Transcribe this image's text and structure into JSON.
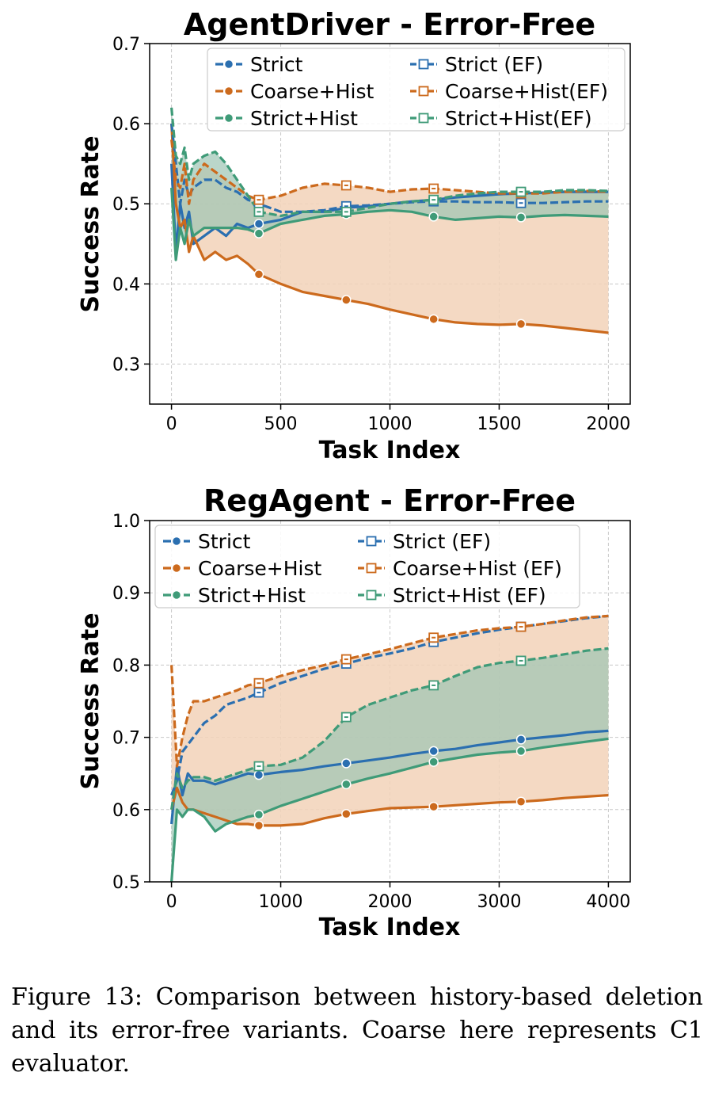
{
  "colors": {
    "strict": "#2b6fb0",
    "coarse": "#cc6a1d",
    "strict_hist": "#3f9b78",
    "grid": "#c8c8c8",
    "fill_coarse": "#f2d2b8",
    "fill_strict_hist": "#9cc4b3"
  },
  "chart_data": [
    {
      "type": "line",
      "title": "AgentDriver - Error-Free",
      "xlabel": "Task Index",
      "ylabel": "Success Rate",
      "xlim": [
        -100,
        2100
      ],
      "ylim": [
        0.25,
        0.7
      ],
      "xticks": [
        0,
        500,
        1000,
        1500,
        2000
      ],
      "xtick_labels": [
        "0",
        "500",
        "1000",
        "1500",
        "2000"
      ],
      "yticks": [
        0.3,
        0.4,
        0.5,
        0.6,
        0.7
      ],
      "ytick_labels": [
        "0.3",
        "0.4",
        "0.5",
        "0.6",
        "0.7"
      ],
      "grid": true,
      "legend_position": "top-right",
      "legend": [
        "Strict",
        "Coarse+Hist",
        "Strict+Hist",
        "Strict (EF)",
        "Coarse+Hist(EF)",
        "Strict+Hist(EF)"
      ],
      "series": [
        {
          "name": "Strict",
          "key": "strict",
          "style": "circle",
          "markers": [
            400,
            800,
            1200,
            1600
          ],
          "x": [
            0,
            20,
            40,
            60,
            80,
            100,
            150,
            200,
            250,
            300,
            350,
            400,
            500,
            600,
            700,
            800,
            900,
            1000,
            1100,
            1200,
            1300,
            1400,
            1500,
            1600,
            1700,
            1800,
            1900,
            2000
          ],
          "y": [
            0.55,
            0.44,
            0.5,
            0.47,
            0.49,
            0.45,
            0.46,
            0.47,
            0.46,
            0.475,
            0.47,
            0.475,
            0.48,
            0.49,
            0.49,
            0.495,
            0.497,
            0.5,
            0.503,
            0.505,
            0.508,
            0.51,
            0.512,
            0.513,
            0.514,
            0.515,
            0.515,
            0.515
          ]
        },
        {
          "name": "Coarse+Hist",
          "key": "coarse",
          "style": "circle",
          "markers": [
            400,
            800,
            1200,
            1600
          ],
          "x": [
            0,
            20,
            40,
            60,
            80,
            100,
            150,
            200,
            250,
            300,
            350,
            400,
            500,
            600,
            700,
            800,
            900,
            1000,
            1100,
            1200,
            1300,
            1400,
            1500,
            1600,
            1700,
            1800,
            1900,
            2000
          ],
          "y": [
            0.6,
            0.5,
            0.47,
            0.48,
            0.44,
            0.46,
            0.43,
            0.44,
            0.43,
            0.435,
            0.425,
            0.412,
            0.4,
            0.39,
            0.385,
            0.38,
            0.375,
            0.368,
            0.362,
            0.356,
            0.352,
            0.35,
            0.349,
            0.35,
            0.348,
            0.345,
            0.342,
            0.339
          ]
        },
        {
          "name": "Strict+Hist",
          "key": "strict_hist",
          "style": "circle",
          "markers": [
            400,
            800,
            1200,
            1600
          ],
          "x": [
            0,
            20,
            40,
            60,
            80,
            100,
            150,
            200,
            250,
            300,
            350,
            400,
            500,
            600,
            700,
            800,
            900,
            1000,
            1100,
            1200,
            1300,
            1400,
            1500,
            1600,
            1700,
            1800,
            1900,
            2000
          ],
          "y": [
            0.52,
            0.43,
            0.47,
            0.45,
            0.48,
            0.46,
            0.47,
            0.47,
            0.47,
            0.47,
            0.468,
            0.463,
            0.475,
            0.48,
            0.485,
            0.487,
            0.49,
            0.492,
            0.49,
            0.484,
            0.48,
            0.482,
            0.484,
            0.483,
            0.485,
            0.486,
            0.485,
            0.484
          ]
        },
        {
          "name": "Strict (EF)",
          "key": "strict",
          "style": "square",
          "markers": [
            400,
            800,
            1200,
            1600
          ],
          "x": [
            0,
            20,
            40,
            60,
            80,
            100,
            150,
            200,
            250,
            300,
            350,
            400,
            500,
            600,
            700,
            800,
            900,
            1000,
            1100,
            1200,
            1300,
            1400,
            1500,
            1600,
            1700,
            1800,
            1900,
            2000
          ],
          "y": [
            0.6,
            0.55,
            0.5,
            0.53,
            0.51,
            0.52,
            0.53,
            0.53,
            0.52,
            0.515,
            0.505,
            0.5,
            0.49,
            0.49,
            0.492,
            0.497,
            0.498,
            0.5,
            0.502,
            0.503,
            0.503,
            0.502,
            0.502,
            0.501,
            0.501,
            0.502,
            0.503,
            0.503
          ]
        },
        {
          "name": "Coarse+Hist(EF)",
          "key": "coarse",
          "style": "square",
          "markers": [
            400,
            800,
            1200,
            1600
          ],
          "x": [
            0,
            20,
            40,
            60,
            80,
            100,
            150,
            200,
            250,
            300,
            350,
            400,
            500,
            600,
            700,
            800,
            900,
            1000,
            1100,
            1200,
            1300,
            1400,
            1500,
            1600,
            1700,
            1800,
            1900,
            2000
          ],
          "y": [
            0.58,
            0.53,
            0.52,
            0.55,
            0.5,
            0.53,
            0.55,
            0.54,
            0.53,
            0.52,
            0.51,
            0.505,
            0.51,
            0.52,
            0.525,
            0.523,
            0.52,
            0.515,
            0.518,
            0.519,
            0.517,
            0.515,
            0.513,
            0.513,
            0.513,
            0.515,
            0.516,
            0.515
          ]
        },
        {
          "name": "Strict+Hist(EF)",
          "key": "strict_hist",
          "style": "square",
          "markers": [
            400,
            800,
            1200,
            1600
          ],
          "x": [
            0,
            20,
            40,
            60,
            80,
            100,
            150,
            200,
            250,
            300,
            350,
            400,
            500,
            600,
            700,
            800,
            900,
            1000,
            1100,
            1200,
            1300,
            1400,
            1500,
            1600,
            1700,
            1800,
            1900,
            2000
          ],
          "y": [
            0.62,
            0.56,
            0.55,
            0.57,
            0.53,
            0.55,
            0.56,
            0.565,
            0.55,
            0.53,
            0.51,
            0.49,
            0.485,
            0.49,
            0.49,
            0.49,
            0.495,
            0.5,
            0.503,
            0.505,
            0.51,
            0.513,
            0.515,
            0.515,
            0.515,
            0.517,
            0.517,
            0.516
          ]
        }
      ]
    },
    {
      "type": "line",
      "title": "RegAgent - Error-Free",
      "xlabel": "Task Index",
      "ylabel": "Success Rate",
      "xlim": [
        -200,
        4200
      ],
      "ylim": [
        0.5,
        1.0
      ],
      "xticks": [
        0,
        1000,
        2000,
        3000,
        4000
      ],
      "xtick_labels": [
        "0",
        "1000",
        "2000",
        "3000",
        "4000"
      ],
      "yticks": [
        0.5,
        0.6,
        0.7,
        0.8,
        0.9,
        1.0
      ],
      "ytick_labels": [
        "0.5",
        "0.6",
        "0.7",
        "0.8",
        "0.9",
        "1.0"
      ],
      "grid": true,
      "legend_position": "top-left",
      "legend": [
        "Strict",
        "Coarse+Hist",
        "Strict+Hist",
        "Strict (EF)",
        "Coarse+Hist (EF)",
        "Strict+Hist (EF)"
      ],
      "series": [
        {
          "name": "Strict",
          "key": "strict",
          "style": "circle",
          "markers": [
            800,
            1600,
            2400,
            3200
          ],
          "x": [
            0,
            50,
            100,
            150,
            200,
            300,
            400,
            500,
            600,
            700,
            800,
            1000,
            1200,
            1400,
            1600,
            1800,
            2000,
            2200,
            2400,
            2600,
            2800,
            3000,
            3200,
            3400,
            3600,
            3800,
            4000
          ],
          "y": [
            0.58,
            0.66,
            0.62,
            0.65,
            0.64,
            0.64,
            0.635,
            0.64,
            0.645,
            0.65,
            0.648,
            0.652,
            0.655,
            0.66,
            0.664,
            0.668,
            0.672,
            0.677,
            0.681,
            0.684,
            0.689,
            0.693,
            0.697,
            0.7,
            0.703,
            0.707,
            0.709
          ]
        },
        {
          "name": "Coarse+Hist",
          "key": "coarse",
          "style": "circle",
          "markers": [
            800,
            1600,
            2400,
            3200
          ],
          "x": [
            0,
            50,
            100,
            150,
            200,
            300,
            400,
            500,
            600,
            700,
            800,
            1000,
            1200,
            1400,
            1600,
            1800,
            2000,
            2200,
            2400,
            2600,
            2800,
            3000,
            3200,
            3400,
            3600,
            3800,
            4000
          ],
          "y": [
            0.6,
            0.63,
            0.61,
            0.6,
            0.6,
            0.595,
            0.59,
            0.585,
            0.58,
            0.58,
            0.578,
            0.578,
            0.58,
            0.588,
            0.594,
            0.598,
            0.602,
            0.603,
            0.604,
            0.606,
            0.608,
            0.61,
            0.611,
            0.613,
            0.616,
            0.618,
            0.62
          ]
        },
        {
          "name": "Strict+Hist",
          "key": "strict_hist",
          "style": "circle",
          "markers": [
            800,
            1600,
            2400,
            3200
          ],
          "x": [
            0,
            50,
            100,
            150,
            200,
            300,
            400,
            500,
            600,
            700,
            800,
            1000,
            1200,
            1400,
            1600,
            1800,
            2000,
            2200,
            2400,
            2600,
            2800,
            3000,
            3200,
            3400,
            3600,
            3800,
            4000
          ],
          "y": [
            0.5,
            0.6,
            0.59,
            0.6,
            0.6,
            0.59,
            0.57,
            0.58,
            0.585,
            0.59,
            0.593,
            0.605,
            0.615,
            0.625,
            0.635,
            0.643,
            0.65,
            0.658,
            0.666,
            0.671,
            0.676,
            0.679,
            0.681,
            0.686,
            0.69,
            0.694,
            0.698
          ]
        },
        {
          "name": "Strict (EF)",
          "key": "strict",
          "style": "square",
          "markers": [
            800,
            1600,
            2400,
            3200
          ],
          "x": [
            0,
            50,
            100,
            150,
            200,
            300,
            400,
            500,
            600,
            700,
            800,
            1000,
            1200,
            1400,
            1600,
            1800,
            2000,
            2200,
            2400,
            2600,
            2800,
            3000,
            3200,
            3400,
            3600,
            3800,
            4000
          ],
          "y": [
            0.62,
            0.64,
            0.68,
            0.69,
            0.7,
            0.72,
            0.73,
            0.745,
            0.75,
            0.755,
            0.762,
            0.775,
            0.785,
            0.795,
            0.802,
            0.81,
            0.816,
            0.823,
            0.832,
            0.838,
            0.844,
            0.849,
            0.853,
            0.857,
            0.861,
            0.865,
            0.868
          ]
        },
        {
          "name": "Coarse+Hist (EF)",
          "key": "coarse",
          "style": "square",
          "markers": [
            800,
            1600,
            2400,
            3200
          ],
          "x": [
            0,
            50,
            100,
            150,
            200,
            300,
            400,
            500,
            600,
            700,
            800,
            1000,
            1200,
            1400,
            1600,
            1800,
            2000,
            2200,
            2400,
            2600,
            2800,
            3000,
            3200,
            3400,
            3600,
            3800,
            4000
          ],
          "y": [
            0.8,
            0.66,
            0.7,
            0.73,
            0.75,
            0.75,
            0.755,
            0.76,
            0.765,
            0.772,
            0.775,
            0.785,
            0.793,
            0.8,
            0.808,
            0.815,
            0.822,
            0.83,
            0.838,
            0.843,
            0.848,
            0.851,
            0.853,
            0.857,
            0.862,
            0.866,
            0.868
          ]
        },
        {
          "name": "Strict+Hist (EF)",
          "key": "strict_hist",
          "style": "square",
          "markers": [
            800,
            1600,
            2400,
            3200
          ],
          "x": [
            0,
            50,
            100,
            150,
            200,
            300,
            400,
            500,
            600,
            700,
            800,
            1000,
            1200,
            1400,
            1600,
            1800,
            2000,
            2200,
            2400,
            2600,
            2800,
            3000,
            3200,
            3400,
            3600,
            3800,
            4000
          ],
          "y": [
            0.6,
            0.65,
            0.63,
            0.64,
            0.645,
            0.645,
            0.64,
            0.645,
            0.65,
            0.655,
            0.66,
            0.662,
            0.672,
            0.695,
            0.728,
            0.745,
            0.755,
            0.765,
            0.772,
            0.785,
            0.797,
            0.803,
            0.806,
            0.81,
            0.815,
            0.82,
            0.823
          ]
        }
      ]
    }
  ],
  "caption": "Figure 13: Comparison between history-based deletion and its error-free variants. Coarse here represents C1 evaluator."
}
